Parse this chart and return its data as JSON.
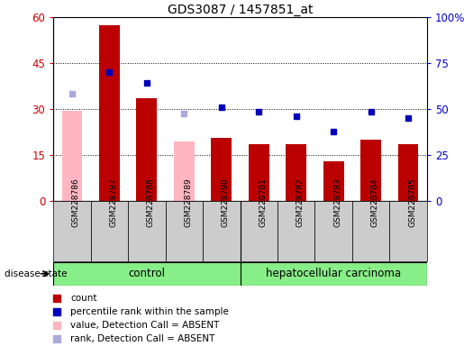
{
  "title": "GDS3087 / 1457851_at",
  "samples": [
    "GSM228786",
    "GSM228787",
    "GSM228788",
    "GSM228789",
    "GSM228790",
    "GSM228781",
    "GSM228782",
    "GSM228783",
    "GSM228784",
    "GSM228785"
  ],
  "bar_red": [
    null,
    57.5,
    33.5,
    null,
    20.5,
    18.5,
    18.5,
    13.0,
    20.0,
    18.5
  ],
  "bar_pink": [
    29.5,
    null,
    null,
    19.5,
    null,
    null,
    null,
    null,
    null,
    null
  ],
  "dot_blue_left": [
    null,
    42.0,
    38.5,
    null,
    30.5,
    29.0,
    27.5,
    22.5,
    29.0,
    27.0
  ],
  "dot_lblue_left": [
    35.0,
    null,
    null,
    28.5,
    null,
    null,
    null,
    null,
    null,
    null
  ],
  "ylim_left": [
    0,
    60
  ],
  "ylim_right": [
    0,
    100
  ],
  "yticks_left": [
    0,
    15,
    30,
    45,
    60
  ],
  "ytick_labels_left": [
    "0",
    "15",
    "30",
    "45",
    "60"
  ],
  "yticks_right": [
    0,
    25,
    50,
    75,
    100
  ],
  "ytick_labels_right": [
    "0",
    "25",
    "50",
    "75",
    "100%"
  ],
  "bar_red_color": "#bb0000",
  "bar_pink_color": "#ffb6c1",
  "dot_blue_color": "#0000bb",
  "dot_lblue_color": "#aaaadd",
  "bg_xtick": "#cccccc",
  "label_color_left": "#cc0000",
  "label_color_right": "#0000cc",
  "ctrl_color": "#aaddaa",
  "hcc_color": "#88ee88",
  "legend_labels": [
    "count",
    "percentile rank within the sample",
    "value, Detection Call = ABSENT",
    "rank, Detection Call = ABSENT"
  ],
  "legend_colors": [
    "#bb0000",
    "#0000bb",
    "#ffb6c1",
    "#aaaadd"
  ]
}
